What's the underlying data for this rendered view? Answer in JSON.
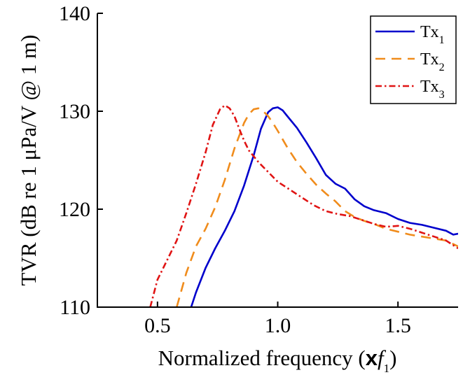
{
  "chart_data": {
    "type": "line",
    "title": "",
    "xlabel": {
      "prefix": "Normalized frequency (",
      "bold": "x",
      "italic": "f",
      "sub": "1",
      "suffix": ")"
    },
    "ylabel": "TVR (dB re 1 μPa/V @ 1 m)",
    "xlim": [
      0.25,
      1.75
    ],
    "ylim": [
      110,
      140
    ],
    "xticks": [
      0.5,
      1.0,
      1.5
    ],
    "xtick_labels": [
      "0.5",
      "1.0",
      "1.5"
    ],
    "yticks": [
      110,
      120,
      130,
      140
    ],
    "ytick_labels": [
      "110",
      "120",
      "130",
      "140"
    ],
    "legend_position": "top-right",
    "series": [
      {
        "name": "Tx1",
        "label_main": "Tx",
        "label_sub": "1",
        "color": "#0000cc",
        "dash": "solid",
        "x": [
          0.64,
          0.66,
          0.7,
          0.74,
          0.78,
          0.82,
          0.86,
          0.9,
          0.93,
          0.96,
          0.98,
          1.0,
          1.02,
          1.04,
          1.08,
          1.12,
          1.16,
          1.2,
          1.24,
          1.28,
          1.32,
          1.36,
          1.4,
          1.45,
          1.5,
          1.55,
          1.6,
          1.65,
          1.7,
          1.73,
          1.75
        ],
        "y": [
          110.0,
          111.5,
          114.0,
          116.0,
          117.8,
          119.8,
          122.4,
          125.5,
          128.2,
          129.9,
          130.3,
          130.4,
          130.1,
          129.5,
          128.3,
          126.8,
          125.2,
          123.5,
          122.6,
          122.1,
          121.0,
          120.3,
          119.9,
          119.6,
          119.0,
          118.6,
          118.4,
          118.1,
          117.8,
          117.4,
          117.5
        ]
      },
      {
        "name": "Tx2",
        "label_main": "Tx",
        "label_sub": "2",
        "color": "#f08c1c",
        "dash": "dashed",
        "x": [
          0.58,
          0.62,
          0.66,
          0.7,
          0.74,
          0.78,
          0.82,
          0.86,
          0.88,
          0.9,
          0.92,
          0.94,
          0.96,
          0.98,
          1.0,
          1.04,
          1.08,
          1.12,
          1.16,
          1.2,
          1.24,
          1.28,
          1.32,
          1.36,
          1.4,
          1.45,
          1.5,
          1.55,
          1.6,
          1.65,
          1.7,
          1.75
        ],
        "y": [
          110.0,
          113.5,
          116.2,
          118.0,
          120.2,
          123.0,
          126.2,
          128.8,
          129.7,
          130.2,
          130.3,
          130.0,
          129.5,
          128.8,
          128.0,
          126.3,
          124.8,
          123.6,
          122.5,
          121.6,
          120.8,
          119.8,
          119.2,
          118.8,
          118.5,
          118.0,
          117.7,
          117.4,
          117.2,
          117.0,
          116.8,
          116.2
        ]
      },
      {
        "name": "Tx3",
        "label_main": "Tx",
        "label_sub": "3",
        "color": "#e01414",
        "dash": "dashdot",
        "x": [
          0.47,
          0.5,
          0.54,
          0.58,
          0.62,
          0.66,
          0.7,
          0.73,
          0.76,
          0.78,
          0.8,
          0.82,
          0.84,
          0.86,
          0.88,
          0.92,
          0.96,
          1.0,
          1.05,
          1.1,
          1.15,
          1.2,
          1.25,
          1.3,
          1.35,
          1.4,
          1.45,
          1.5,
          1.55,
          1.6,
          1.65,
          1.7,
          1.75
        ],
        "y": [
          110.0,
          112.8,
          114.8,
          116.8,
          119.6,
          122.6,
          125.8,
          128.6,
          130.2,
          130.6,
          130.3,
          129.5,
          128.2,
          127.0,
          126.0,
          124.8,
          123.8,
          122.8,
          122.0,
          121.2,
          120.4,
          119.8,
          119.5,
          119.3,
          118.9,
          118.5,
          118.2,
          118.3,
          118.0,
          117.6,
          117.2,
          116.8,
          116.0
        ]
      }
    ]
  }
}
